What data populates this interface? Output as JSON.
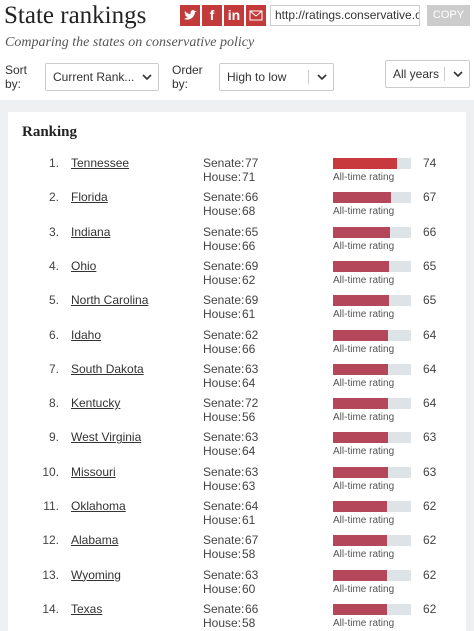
{
  "header": {
    "title": "State rankings",
    "subtitle": "Comparing the states on conservative policy",
    "share_url": "http://ratings.conservative.or",
    "copy_button": "COPY",
    "facebook": "f",
    "linkedin": "in"
  },
  "controls": {
    "sort_label": "Sort by:",
    "sort_value": "Current Rank...",
    "order_label": "Order by:",
    "order_value": "High to low",
    "years_value": "All years"
  },
  "ranking": {
    "heading": "Ranking",
    "senate_label": "Senate:",
    "house_label": "House:",
    "bar_label": "All-time rating",
    "rows": [
      {
        "rank": "1.",
        "state": "Tennessee",
        "senate": 77,
        "house": 71,
        "rating": 74
      },
      {
        "rank": "2.",
        "state": "Florida",
        "senate": 66,
        "house": 68,
        "rating": 67
      },
      {
        "rank": "3.",
        "state": "Indiana",
        "senate": 65,
        "house": 66,
        "rating": 66
      },
      {
        "rank": "4.",
        "state": "Ohio",
        "senate": 69,
        "house": 62,
        "rating": 65
      },
      {
        "rank": "5.",
        "state": "North Carolina",
        "senate": 69,
        "house": 61,
        "rating": 65
      },
      {
        "rank": "6.",
        "state": "Idaho",
        "senate": 62,
        "house": 66,
        "rating": 64
      },
      {
        "rank": "7.",
        "state": "South Dakota",
        "senate": 63,
        "house": 64,
        "rating": 64
      },
      {
        "rank": "8.",
        "state": "Kentucky",
        "senate": 72,
        "house": 56,
        "rating": 64
      },
      {
        "rank": "9.",
        "state": "West Virginia",
        "senate": 63,
        "house": 64,
        "rating": 63
      },
      {
        "rank": "10.",
        "state": "Missouri",
        "senate": 63,
        "house": 63,
        "rating": 63
      },
      {
        "rank": "11.",
        "state": "Oklahoma",
        "senate": 64,
        "house": 61,
        "rating": 62
      },
      {
        "rank": "12.",
        "state": "Alabama",
        "senate": 67,
        "house": 58,
        "rating": 62
      },
      {
        "rank": "13.",
        "state": "Wyoming",
        "senate": 63,
        "house": 60,
        "rating": 62
      },
      {
        "rank": "14.",
        "state": "Texas",
        "senate": 66,
        "house": 58,
        "rating": 62
      }
    ]
  }
}
